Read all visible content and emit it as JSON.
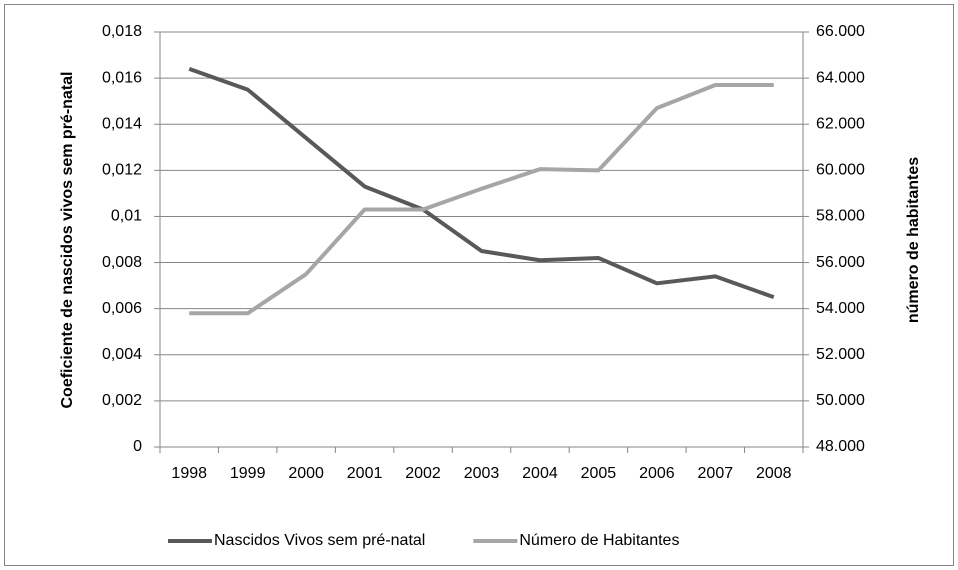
{
  "chart_data": {
    "type": "line",
    "y_label": "Coeficiente de nascidos vivos sem pré-natal",
    "y2_label": "número de habitantes",
    "categories": [
      "1998",
      "1999",
      "2000",
      "2001",
      "2002",
      "2003",
      "2004",
      "2005",
      "2006",
      "2007",
      "2008"
    ],
    "series": [
      {
        "name": "Nascidos Vivos sem pré-natal",
        "color": "#595959",
        "values": [
          0.0164,
          0.0155,
          0.0134,
          0.0113,
          0.0103,
          0.0085,
          0.0081,
          0.0082,
          0.0071,
          0.0074,
          0.0065
        ]
      },
      {
        "name": "Número de Habitantes",
        "color": "#a6a6a6",
        "axis": "y2",
        "values": [
          53800,
          53800,
          55500,
          58300,
          58300,
          59200,
          60050,
          60000,
          62700,
          63700,
          63700
        ]
      }
    ],
    "ylim": [
      0,
      0.018
    ],
    "yticks": [
      0,
      {
        "value": 0.002,
        "label": "0,002"
      },
      {
        "value": 0.004,
        "label": "0,004"
      },
      {
        "value": 0.006,
        "label": "0,006"
      },
      {
        "value": 0.008,
        "label": "0,008"
      },
      {
        "value": 0.01,
        "label": "0,01"
      },
      {
        "value": 0.012,
        "label": "0,012"
      },
      {
        "value": 0.014,
        "label": "0,014"
      },
      {
        "value": 0.016,
        "label": "0,016"
      },
      {
        "value": 0.018,
        "label": "0,018"
      }
    ],
    "y2lim": [
      48000,
      66000
    ],
    "y2ticks": [
      {
        "value": 48000,
        "label": "48.000"
      },
      {
        "value": 50000,
        "label": "50.000"
      },
      {
        "value": 52000,
        "label": "52.000"
      },
      {
        "value": 54000,
        "label": "54.000"
      },
      {
        "value": 56000,
        "label": "56.000"
      },
      {
        "value": 58000,
        "label": "58.000"
      },
      {
        "value": 60000,
        "label": "60.000"
      },
      {
        "value": 62000,
        "label": "62.000"
      },
      {
        "value": 64000,
        "label": "64.000"
      },
      {
        "value": 66000,
        "label": "66.000"
      }
    ],
    "grid": true,
    "legend": "bottom"
  }
}
